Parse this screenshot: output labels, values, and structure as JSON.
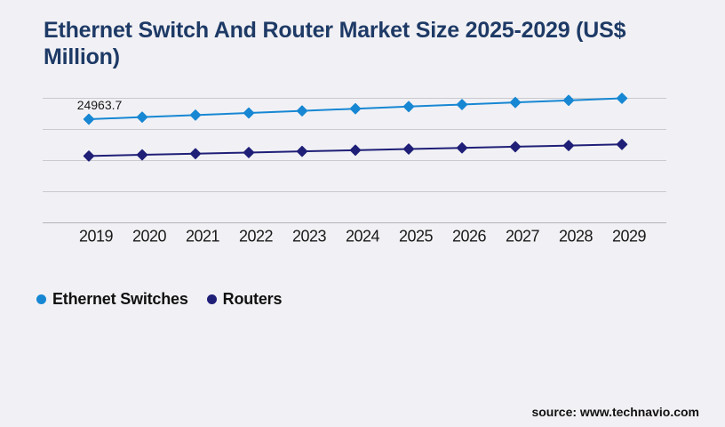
{
  "page": {
    "background": "#f1f1f5"
  },
  "header": {
    "title_line1": "Ethernet Switch And Router Market Size 2025-2029 (US$",
    "title_line2": "Million)",
    "title_color": "#1e3a66"
  },
  "chart_data": {
    "type": "line",
    "title": "Ethernet Switch And Router Market Size 2025-2029 (US$ Million)",
    "categories": [
      "2019",
      "2020",
      "2021",
      "2022",
      "2023",
      "2024",
      "2025",
      "2026",
      "2027",
      "2028",
      "2029"
    ],
    "series": [
      {
        "name": "Ethernet Switches",
        "color": "#1787d3",
        "marker": "diamond",
        "values": [
          24963.7,
          25460,
          25960,
          26465,
          26975,
          27490,
          28010,
          28500,
          29000,
          29500,
          30000
        ]
      },
      {
        "name": "Routers",
        "color": "#1f1f78",
        "marker": "diamond",
        "values": [
          16100,
          16380,
          16660,
          16940,
          17220,
          17500,
          17780,
          18060,
          18340,
          18620,
          18900
        ]
      }
    ],
    "data_labels": [
      {
        "series_index": 0,
        "point_index": 0,
        "text": "24963.7"
      }
    ],
    "ylim": [
      0,
      30000
    ],
    "y_gridline_step": 7500,
    "grid": "horizontal",
    "y_axis_labels_visible": false,
    "xlabel": "",
    "ylabel": "",
    "legend_position": "bottom-left",
    "grid_color": "#cacace",
    "axis_line_color": "#b2b2b9",
    "tick_label_color": "#1a1a1a"
  },
  "legend": {
    "items": [
      {
        "label": "Ethernet Switches",
        "color": "#1787d3"
      },
      {
        "label": "Routers",
        "color": "#1f1f78"
      }
    ]
  },
  "footer": {
    "source_label": "source: www.technavio.com"
  }
}
